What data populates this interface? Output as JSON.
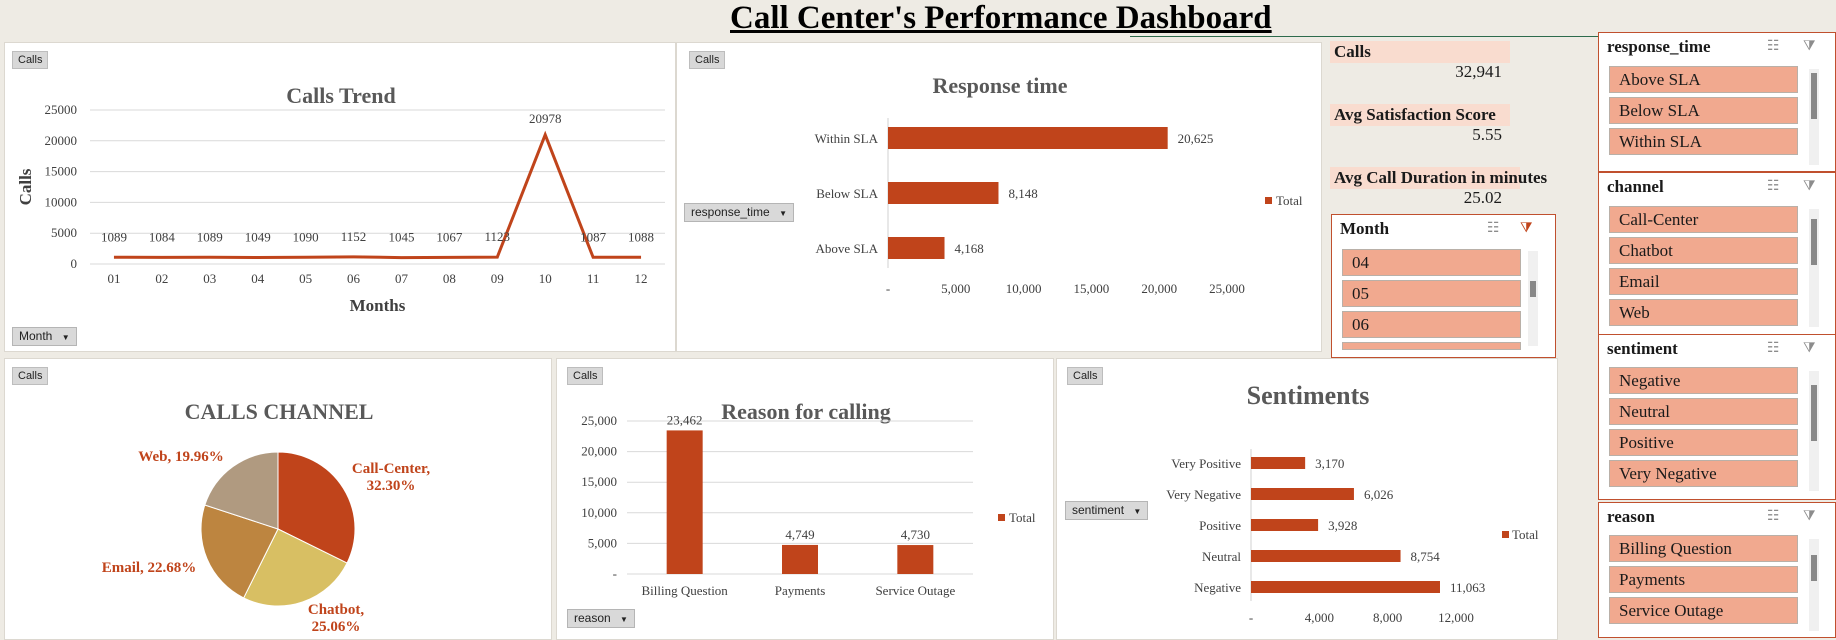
{
  "header": {
    "title": "Call Center's Performance Dashboard"
  },
  "colors": {
    "accent": "#c0441b",
    "slicer_item": "#f1a98f",
    "kpi_label_bg": "#f9dccf"
  },
  "calls_trend": {
    "tag": "Calls",
    "filter_button": "Month",
    "chart_data": {
      "type": "line",
      "title": "Calls Trend",
      "xlabel": "Months",
      "ylabel": "Calls",
      "categories": [
        "01",
        "02",
        "03",
        "04",
        "05",
        "06",
        "07",
        "08",
        "09",
        "10",
        "11",
        "12"
      ],
      "values": [
        1089,
        1084,
        1089,
        1049,
        1090,
        1152,
        1045,
        1067,
        1123,
        20978,
        1087,
        1088
      ],
      "ylim": [
        0,
        25000
      ],
      "yticks": [
        "0",
        "5000",
        "10000",
        "15000",
        "20000",
        "25000"
      ],
      "grid": true
    }
  },
  "response_time": {
    "tag": "Calls",
    "filter_button": "response_time",
    "chart_data": {
      "type": "bar",
      "title": "Response time",
      "categories": [
        "Within SLA",
        "Below SLA",
        "Above SLA"
      ],
      "values": [
        20625,
        8148,
        4168
      ],
      "value_labels": [
        "20,625",
        "8,148",
        "4,168"
      ],
      "xlim": [
        0,
        25000
      ],
      "xticks": [
        "-",
        "5,000",
        "10,000",
        "15,000",
        "20,000",
        "25,000"
      ],
      "legend": "Total",
      "legend_position": "right"
    }
  },
  "kpis": [
    {
      "label": "Calls",
      "value": "32,941"
    },
    {
      "label": "Avg Satisfaction Score",
      "value": "5.55"
    },
    {
      "label": "Avg Call Duration in minutes",
      "value": "25.02"
    }
  ],
  "calls_channel": {
    "tag": "Calls",
    "chart_data": {
      "type": "pie",
      "title": "CALLS CHANNEL",
      "categories": [
        "Call-Center",
        "Chatbot",
        "Email",
        "Web"
      ],
      "values": [
        32.3,
        25.06,
        22.68,
        19.96
      ],
      "labels": [
        "Call-Center, 32.30%",
        "Chatbot, 25.06%",
        "Email, 22.68%",
        "Web, 19.96%"
      ],
      "colors": [
        "#c0441b",
        "#d8bf63",
        "#bd8540",
        "#b09a80"
      ]
    }
  },
  "reason": {
    "tag": "Calls",
    "filter_button": "reason",
    "chart_data": {
      "type": "bar",
      "title": "Reason for calling",
      "categories": [
        "Billing Question",
        "Payments",
        "Service Outage"
      ],
      "values": [
        23462,
        4749,
        4730
      ],
      "value_labels": [
        "23,462",
        "4,749",
        "4,730"
      ],
      "ylim": [
        0,
        25000
      ],
      "yticks": [
        "-",
        "5,000",
        "10,000",
        "15,000",
        "20,000",
        "25,000"
      ],
      "legend": "Total",
      "legend_position": "right"
    }
  },
  "sentiments": {
    "tag": "Calls",
    "filter_button": "sentiment",
    "chart_data": {
      "type": "bar",
      "title": "Sentiments",
      "categories": [
        "Very Positive",
        "Very Negative",
        "Positive",
        "Neutral",
        "Negative"
      ],
      "values": [
        3170,
        6026,
        3928,
        8754,
        11063
      ],
      "value_labels": [
        "3,170",
        "6,026",
        "3,928",
        "8,754",
        "11,063"
      ],
      "xlim": [
        0,
        12000
      ],
      "xticks": [
        "-",
        "4,000",
        "8,000",
        "12,000"
      ],
      "legend": "Total",
      "legend_position": "right"
    }
  },
  "slicers": {
    "month": {
      "title": "Month",
      "items": [
        "04",
        "05",
        "06"
      ]
    },
    "response_time": {
      "title": "response_time",
      "items": [
        "Above SLA",
        "Below SLA",
        "Within SLA"
      ]
    },
    "channel": {
      "title": "channel",
      "items": [
        "Call-Center",
        "Chatbot",
        "Email",
        "Web"
      ]
    },
    "sentiment": {
      "title": "sentiment",
      "items": [
        "Negative",
        "Neutral",
        "Positive",
        "Very Negative"
      ]
    },
    "reason": {
      "title": "reason",
      "items": [
        "Billing Question",
        "Payments",
        "Service Outage"
      ]
    }
  },
  "icons": {
    "multi_select": "multi-select-icon",
    "clear_filter": "clear-filter-icon"
  }
}
